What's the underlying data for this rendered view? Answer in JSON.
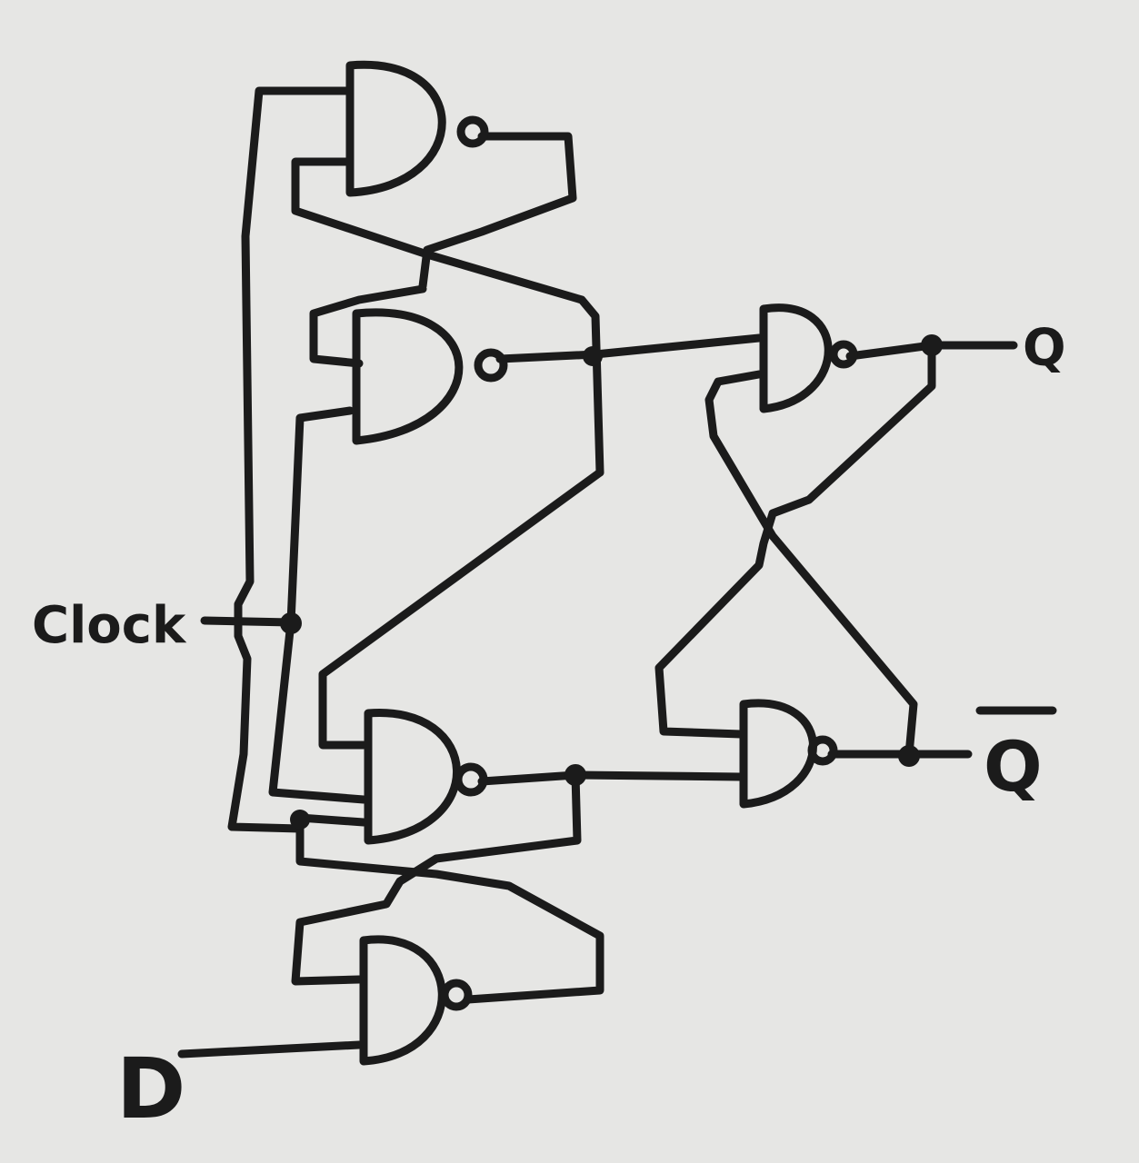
{
  "diagram": {
    "labels": {
      "clock": "Clock",
      "d": "D",
      "q": "Q",
      "q_bar": "Q"
    },
    "colors": {
      "background": "#e6e6e4",
      "ink": "#1b1b1b"
    }
  }
}
